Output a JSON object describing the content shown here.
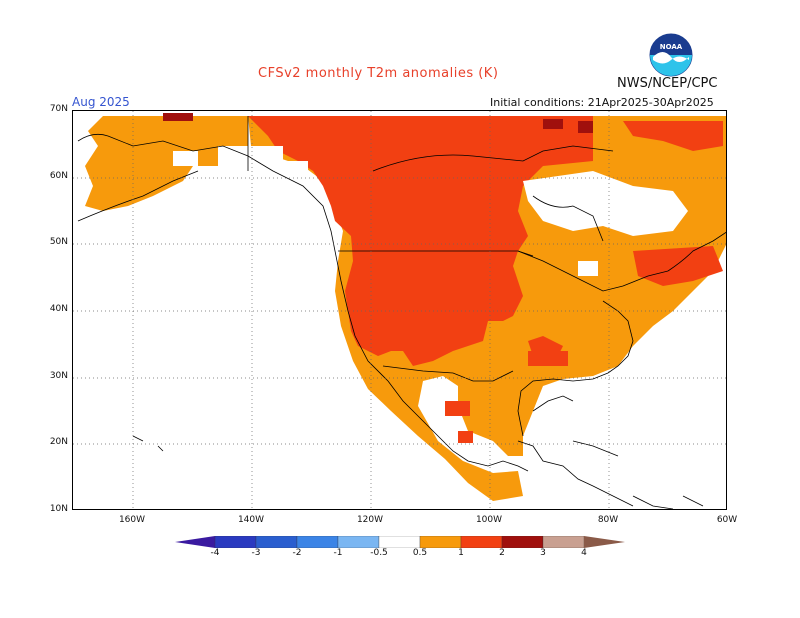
{
  "header": {
    "title": "CFSv2 monthly T2m anomalies (K)",
    "agency": "NWS/NCEP/CPC",
    "month": "Aug 2025",
    "initial_conditions": "Initial conditions: 21Apr2025-30Apr2025",
    "logo_text": "NOAA",
    "colors": {
      "title": "#e8402a",
      "month": "#3555d0"
    }
  },
  "map": {
    "lat_labels": [
      "70N",
      "60N",
      "50N",
      "40N",
      "30N",
      "20N",
      "10N"
    ],
    "lon_labels": [
      "160W",
      "140W",
      "120W",
      "100W",
      "80W",
      "60W"
    ],
    "extent": {
      "lon_min": -170,
      "lon_max": -60,
      "lat_min": 10,
      "lat_max": 70
    },
    "grid": "dotted",
    "land_color": "#ffffff",
    "coast_color": "#000000"
  },
  "anomaly_palette": {
    "ocean_fill": "#ffffff",
    "levels": [
      {
        "range": "0.5-1",
        "color": "#f79a0c"
      },
      {
        "range": "1-2",
        "color": "#f24012"
      },
      {
        "range": "2-3",
        "color": "#a0100d"
      }
    ]
  },
  "colorbar": {
    "labels": [
      "-4",
      "-3",
      "-2",
      "-1",
      "-0.5",
      "0.5",
      "1",
      "2",
      "3",
      "4"
    ],
    "colors": [
      "#3a1aa0",
      "#2a4ec9",
      "#3b7fe0",
      "#5a9df0",
      "#8ec6f6",
      "#ffffff",
      "#f79a0c",
      "#f24012",
      "#a0100d",
      "#c9a091",
      "#8a5a48"
    ]
  }
}
